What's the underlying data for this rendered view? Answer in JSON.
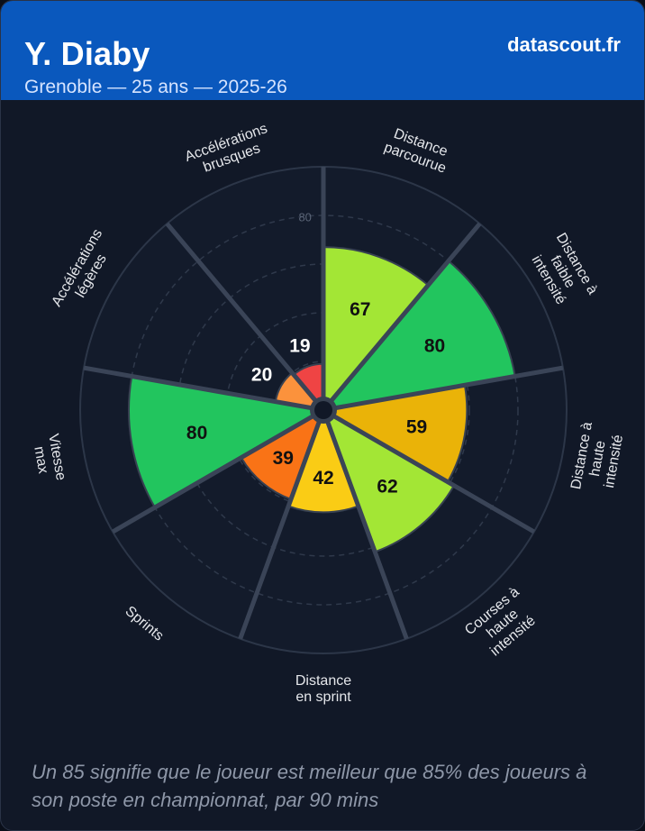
{
  "header": {
    "player_name": "Y. Diaby",
    "subtitle": "Grenoble — 25 ans — 2025-26",
    "brand": "datascout.fr"
  },
  "footnote": "Un 85 signifie que le joueur est meilleur que 85% des joueurs à son poste en championnat, par 90 mins",
  "chart_data": {
    "type": "polar-bar",
    "title": "Y. Diaby",
    "rmax": 100,
    "scale_label": "80",
    "grid": true,
    "categories": [
      [
        "Distance",
        "parcourue"
      ],
      [
        "Distance à",
        "faible",
        "intensité"
      ],
      [
        "Distance à",
        "haute",
        "intensité"
      ],
      [
        "Courses à",
        "haute",
        "intensité"
      ],
      [
        "Distance",
        "en sprint"
      ],
      [
        "Sprints"
      ],
      [
        "Vitesse",
        "max"
      ],
      [
        "Accélérations",
        "légères"
      ],
      [
        "Accélérations",
        "brusques"
      ]
    ],
    "values": [
      67,
      80,
      59,
      62,
      42,
      39,
      80,
      20,
      19
    ],
    "colors": [
      "#a3e635",
      "#22c55e",
      "#eab308",
      "#a3e635",
      "#facc15",
      "#f97316",
      "#22c55e",
      "#fb923c",
      "#ef4444"
    ]
  }
}
